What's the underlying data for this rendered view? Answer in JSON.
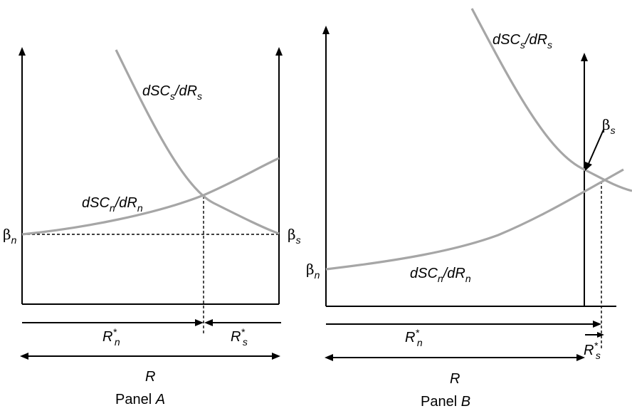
{
  "panel_a": {
    "caption_text": "Panel ",
    "caption_letter": "A",
    "mc_s": {
      "base": "dSC",
      "sub1": "s",
      "mid": "/dR",
      "sub2": "s"
    },
    "mc_n": {
      "base": "dSC",
      "sub1": "n",
      "mid": "/dR",
      "sub2": "n"
    },
    "beta_n": {
      "sym": "β",
      "sub": "n"
    },
    "beta_s": {
      "sym": "β",
      "sub": "s"
    },
    "r_n": {
      "base": "R",
      "sup": "*",
      "sub": "n"
    },
    "r_s": {
      "base": "R",
      "sup": "*",
      "sub": "s"
    },
    "r_total": "R"
  },
  "panel_b": {
    "caption_text": "Panel ",
    "caption_letter": "B",
    "mc_s": {
      "base": "dSC",
      "sub1": "s",
      "mid": "/dR",
      "sub2": "s"
    },
    "mc_n": {
      "base": "dSC",
      "sub1": "n",
      "mid": "/dR",
      "sub2": "n"
    },
    "beta_n": {
      "sym": "β",
      "sub": "n"
    },
    "beta_s": {
      "sym": "β",
      "sub": "s"
    },
    "r_n": {
      "base": "R",
      "sup": "*",
      "sub": "n"
    },
    "r_s": {
      "base": "R",
      "sup": "*",
      "sub": "s"
    },
    "r_total": "R"
  },
  "colors": {
    "curve": "#a6a6a6",
    "axis": "#000000"
  }
}
